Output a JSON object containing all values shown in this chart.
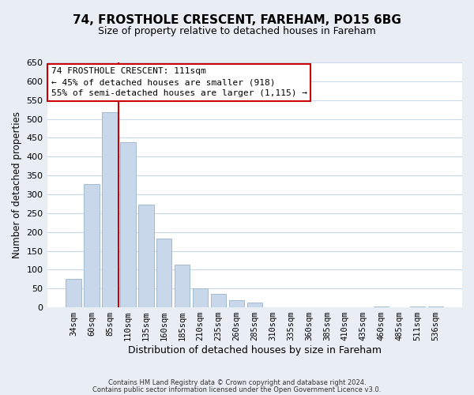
{
  "title": "74, FROSTHOLE CRESCENT, FAREHAM, PO15 6BG",
  "subtitle": "Size of property relative to detached houses in Fareham",
  "xlabel": "Distribution of detached houses by size in Fareham",
  "ylabel": "Number of detached properties",
  "bar_labels": [
    "34sqm",
    "60sqm",
    "85sqm",
    "110sqm",
    "135sqm",
    "160sqm",
    "185sqm",
    "210sqm",
    "235sqm",
    "260sqm",
    "285sqm",
    "310sqm",
    "335sqm",
    "360sqm",
    "385sqm",
    "410sqm",
    "435sqm",
    "460sqm",
    "485sqm",
    "511sqm",
    "536sqm"
  ],
  "bar_values": [
    75,
    328,
    518,
    438,
    272,
    182,
    113,
    50,
    35,
    19,
    13,
    0,
    0,
    0,
    0,
    0,
    0,
    3,
    0,
    2,
    2
  ],
  "bar_color": "#c8d8ea",
  "bar_edge_color": "#a0bcd0",
  "highlight_line_color": "#cc0000",
  "box_edge_color": "#cc0000",
  "highlight_box_text_line1": "74 FROSTHOLE CRESCENT: 111sqm",
  "highlight_box_text_line2": "← 45% of detached houses are smaller (918)",
  "highlight_box_text_line3": "55% of semi-detached houses are larger (1,115) →",
  "ylim": [
    0,
    650
  ],
  "yticks": [
    0,
    50,
    100,
    150,
    200,
    250,
    300,
    350,
    400,
    450,
    500,
    550,
    600,
    650
  ],
  "footer_line1": "Contains HM Land Registry data © Crown copyright and database right 2024.",
  "footer_line2": "Contains public sector information licensed under the Open Government Licence v3.0.",
  "background_color": "#e8eef4",
  "plot_background_color": "#ffffff",
  "grid_color": "#c8d8e8",
  "title_fontsize": 11,
  "subtitle_fontsize": 9
}
